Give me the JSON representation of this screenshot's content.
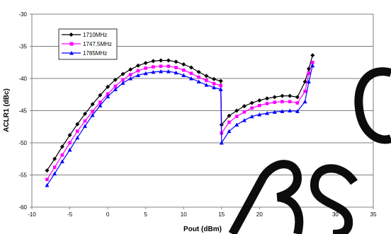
{
  "chart_data": {
    "type": "line",
    "title": "",
    "xlabel": "Pout (dBm)",
    "ylabel": "ACLR1 (dBc)",
    "xlim": [
      -10,
      35
    ],
    "ylim": [
      -60,
      -30
    ],
    "xticks": [
      -10,
      -5,
      0,
      5,
      10,
      15,
      20,
      25,
      30,
      35
    ],
    "yticks": [
      -30,
      -35,
      -40,
      -45,
      -50,
      -55,
      -60
    ],
    "grid": "horizontal",
    "legend": "top-left",
    "colors": {
      "s1710": "#000000",
      "s1747": "#ff00ff",
      "s1785": "#0000ff",
      "watermark": "#000000"
    },
    "series": [
      {
        "name": "1710MHz",
        "marker": "diamond",
        "x": [
          -8,
          -7,
          -6,
          -5,
          -4,
          -3,
          -2,
          -1,
          0,
          1,
          2,
          3,
          4,
          5,
          6,
          7,
          8,
          9,
          10,
          11,
          12,
          13,
          14,
          14.9,
          15,
          16,
          17,
          18,
          19,
          20,
          21,
          22,
          23,
          24,
          25,
          26,
          26.5,
          27
        ],
        "y": [
          -54.3,
          -52.5,
          -50.6,
          -48.8,
          -47.1,
          -45.5,
          -44.0,
          -42.6,
          -41.3,
          -40.2,
          -39.3,
          -38.6,
          -38.0,
          -37.6,
          -37.3,
          -37.2,
          -37.2,
          -37.4,
          -37.8,
          -38.3,
          -39.0,
          -39.6,
          -40.1,
          -40.4,
          -47.2,
          -45.8,
          -45.0,
          -44.3,
          -43.8,
          -43.4,
          -43.1,
          -42.9,
          -42.7,
          -42.7,
          -42.9,
          -40.5,
          -38.5,
          -36.4
        ]
      },
      {
        "name": "1747.5MHz",
        "marker": "square",
        "x": [
          -8,
          -7,
          -6,
          -5,
          -4,
          -3,
          -2,
          -1,
          0,
          1,
          2,
          3,
          4,
          5,
          6,
          7,
          8,
          9,
          10,
          11,
          12,
          13,
          14,
          14.9,
          15,
          16,
          17,
          18,
          19,
          20,
          21,
          22,
          23,
          24,
          25,
          26,
          26.5,
          27
        ],
        "y": [
          -55.7,
          -53.8,
          -51.9,
          -50.0,
          -48.2,
          -46.6,
          -45.1,
          -43.7,
          -42.4,
          -41.2,
          -40.2,
          -39.4,
          -38.8,
          -38.4,
          -38.2,
          -38.1,
          -38.1,
          -38.3,
          -38.7,
          -39.2,
          -39.8,
          -40.3,
          -40.8,
          -41.1,
          -48.5,
          -46.8,
          -45.9,
          -45.2,
          -44.6,
          -44.2,
          -43.9,
          -43.7,
          -43.6,
          -43.6,
          -43.8,
          -42.0,
          -39.2,
          -37.5
        ]
      },
      {
        "name": "1785MHz",
        "marker": "triangle",
        "x": [
          -8,
          -7,
          -6,
          -5,
          -4,
          -3,
          -2,
          -1,
          0,
          1,
          2,
          3,
          4,
          5,
          6,
          7,
          8,
          9,
          10,
          11,
          12,
          13,
          14,
          14.9,
          15,
          16,
          17,
          18,
          19,
          20,
          21,
          22,
          23,
          24,
          25,
          26,
          26.5,
          27
        ],
        "y": [
          -56.6,
          -54.8,
          -52.9,
          -51.1,
          -49.2,
          -47.4,
          -45.7,
          -44.2,
          -42.8,
          -41.7,
          -40.7,
          -40.0,
          -39.5,
          -39.2,
          -39.0,
          -38.9,
          -38.9,
          -39.1,
          -39.5,
          -40.0,
          -40.5,
          -41.0,
          -41.4,
          -41.7,
          -50.0,
          -48.2,
          -47.2,
          -46.5,
          -45.9,
          -45.6,
          -45.4,
          -45.2,
          -45.1,
          -45.0,
          -45.1,
          -43.6,
          -40.5,
          -38.0
        ]
      }
    ]
  }
}
